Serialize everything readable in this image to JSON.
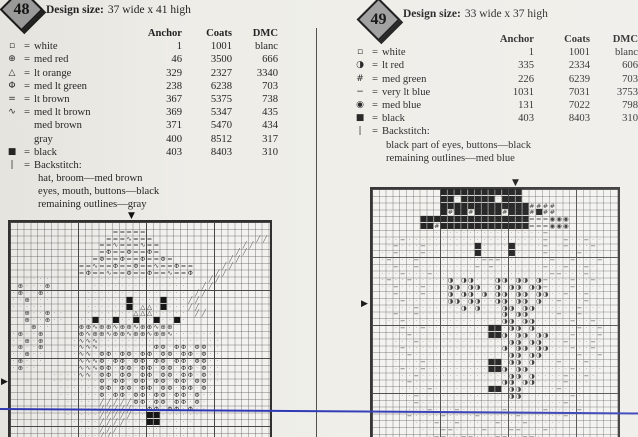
{
  "page": {
    "bg": "#eeede8",
    "blue_line_color": "#2b35b4"
  },
  "left": {
    "badge": "48",
    "design_size_label": "Design size:",
    "design_size": "37 wide x 41 high",
    "legend": {
      "headers": [
        "Anchor",
        "Coats",
        "DMC"
      ],
      "rows": [
        {
          "sym": "▫",
          "eq": "=",
          "name": "white",
          "anchor": "1",
          "coats": "1001",
          "dmc": "blanc"
        },
        {
          "sym": "⊕",
          "eq": "=",
          "name": "med red",
          "anchor": "46",
          "coats": "3500",
          "dmc": "666"
        },
        {
          "sym": "△",
          "eq": "=",
          "name": "lt orange",
          "anchor": "329",
          "coats": "2327",
          "dmc": "3340"
        },
        {
          "sym": "Φ",
          "eq": "=",
          "name": "med lt green",
          "anchor": "238",
          "coats": "6238",
          "dmc": "703"
        },
        {
          "sym": "=",
          "eq": "=",
          "name": "lt brown",
          "anchor": "367",
          "coats": "5375",
          "dmc": "738"
        },
        {
          "sym": "∿",
          "eq": "=",
          "name": "med lt brown",
          "anchor": "369",
          "coats": "5347",
          "dmc": "435"
        },
        {
          "sym": "",
          "eq": "",
          "name": "med brown",
          "anchor": "371",
          "coats": "5470",
          "dmc": "434"
        },
        {
          "sym": "",
          "eq": "",
          "name": "gray",
          "anchor": "400",
          "coats": "8512",
          "dmc": "317"
        },
        {
          "sym": "■",
          "eq": "=",
          "name": "black",
          "anchor": "403",
          "coats": "8403",
          "dmc": "310"
        }
      ],
      "backstitch": {
        "sym": "|",
        "eq": "=",
        "label": "Backstitch:",
        "lines": [
          "hat, broom—med brown",
          "eyes, mouth, buttons—black",
          "remaining outlines—gray"
        ]
      }
    },
    "chart": {
      "symbols": {
        "w": "·",
        "=": "=",
        "n": "∿",
        "r": "⊕",
        "g": "Φ",
        "t": "△",
        "x": "■",
        "/": "╱"
      },
      "palette": {
        "w": "#8d8d8d",
        "x": "#151515",
        "/": "#5a5a5a",
        "default": "#2e2e2e"
      },
      "map": [
        "......................................",
        "...............=====..................",
        "..............===n===...............//",
        ".............==n===n==............//..",
        ".............=g==g==g=...........//...",
        "............=g==g==g==g=........//....",
        "..........==n==g==g==n==g==....//.....",
        "..........=g==n==g==g==n==g...//......",
        "..wwww......wwwwwwwwwwwwww...//.......",
        ".rwwwr......wwwwwwwwwwwwww..//........",
        "wrwwrw.....wwwwwwwwwwwwwww.//.........",
        "wwrwww.....wwwwwwxwwwwxwww//..........",
        "wwwww......wwwwwwxwttwxwww//..........",
        "..rwwrww...wwwwwwwtttwwwww.//.........",
        "..rwwrww..wwxwwxwwxwwxwwxw............",
        "...rww....rrnrrnrrnrrnrr..............",
        "wrwwr.....rnrrnrrnrrnrrnwwwwwww.......",
        "wwrwr....wnnnwwwwwwwwwwwwwwwwww.......",
        "wrwwr....wnnnwwwwwwwwggwggwggww.......",
        "wwrww....wnnwggwggwggwggwggwgww.......",
        "wrwww.....nnngwggwggwggwggwggww.......",
        "wrww......nnnggwggwggwggwggwgww.......",
        "......wwwwnnwggwggwggwggwggwgww.......",
        "......wwwwwwwgwggwggwggwggwggww.......",
        ".......wwwwwwggwggwggwggwggwgw........",
        ".......wwwwwwgwggwggwggwggwgww........",
        "........wwwww/////ggwggwggwgw.........",
        "........wwwww/////wwggwggwgww.........",
        "........wwwww/////wwxxwwwwww..........",
        ".........wwww////wwwxxwwwww...........",
        ".........wwww///wwwwwwwwwww...........",
        "..........www//wwwwwwwwwww............"
      ]
    }
  },
  "right": {
    "badge": "49",
    "design_size_label": "Design size:",
    "design_size": "33 wide x 37 high",
    "legend": {
      "headers": [
        "Anchor",
        "Coats",
        "DMC"
      ],
      "rows": [
        {
          "sym": "▫",
          "eq": "=",
          "name": "white",
          "anchor": "1",
          "coats": "1001",
          "dmc": "blanc"
        },
        {
          "sym": "◑",
          "eq": "=",
          "name": "lt red",
          "anchor": "335",
          "coats": "2334",
          "dmc": "606"
        },
        {
          "sym": "#",
          "eq": "=",
          "name": "med green",
          "anchor": "226",
          "coats": "6239",
          "dmc": "703"
        },
        {
          "sym": "−",
          "eq": "=",
          "name": "very lt blue",
          "anchor": "1031",
          "coats": "7031",
          "dmc": "3753"
        },
        {
          "sym": "◉",
          "eq": "=",
          "name": "med blue",
          "anchor": "131",
          "coats": "7022",
          "dmc": "798"
        },
        {
          "sym": "■",
          "eq": "=",
          "name": "black",
          "anchor": "403",
          "coats": "8403",
          "dmc": "310"
        }
      ],
      "backstitch": {
        "sym": "|",
        "eq": "=",
        "label": "Backstitch:",
        "lines": [
          "black part of eyes, buttons—black",
          "remaining outlines—med blue"
        ]
      }
    },
    "chart": {
      "symbols": {
        "w": "·",
        "-": "−",
        "r": "◑",
        "#": "#",
        "b": "◉",
        "x": "■",
        "=": "="
      },
      "palette": {
        "w": "#8d8d8d",
        "x": "#151515",
        "default": "#2e2e2e"
      },
      "map": [
        "..........xxxxxxxxxxxx..............",
        "..........xxwxxxxxwxxx..............",
        "..........xxxxxxxxxxxxx####.........",
        "..........x#xx#xxxx#xxx#x##.........",
        ".......xxxxxxxxxxxxxxxx===bbb.......",
        ".......xx#xxxxxxxxxxxxx===bbb.......",
        ".........wwwwwwwwwwwwwwww-..........",
        "..ww-wwwwwwwwwwwwwwwwwwww-..-ww-ww..",
        "..w-www-wwwwwwwxwwwwxwwww-.w-www-w..",
        ".ww-www-wwwwwwwxwwwwxwwww-wwww-www..",
        ".w-www-wwwwwwwww---wwwwwww-ww-www-..",
        ".ww-ww-wwwwwwww-w-wwwwwww-ww-ww-w...",
        ".www-www-wwwwwwwwwwwwwwwww--www-ww..",
        ".w-ww-wwwwwrwrrwwwrrwrrwr-www-ww-w..",
        ".ww-www-wwwrrwrrwwrwrrwrr-www-wwww..",
        "..w-www-wwwrwrrwrwrrwrrwrrww-ww-ww..",
        "..ww-wwwwwwrrwrrwwrrwrrwrww-www-....",
        "..wwww-wwwwwwrwrwwwrrwrrwwwwww-www..",
        "..w-ww-wwwwwwwwwwwwrwrrwwww-ww-www..",
        "..ww-wwwwwwwwwwwwwwrrwrrwwwww-ww-w..",
        "...w-ww-wwwwwwwwwxxwrrwrwwwwww-ww-..",
        "...ww-wwwwwwwwwwwxxrwrrwrrwww-www-..",
        "...www-wwwwwwwwwwwwwrrwrrwww-www-w..",
        "...w-wwwwwwwwwwwwwwrwrrwrrwww-ww-w..",
        "...ww-wwwwwwwwwwwwwwrrwrrwwwww-ww-..",
        "...wwww-wwwwwwwwwxxwrrwrwww-www-ww..",
        "...w-ww-wwwwwwwwwxxrwrrwwwwww-wwww..",
        "....ww-wwwwwwwwwwwwwrrwrwwww-ww-w...",
        "....w-wwwwwwwwwwwwwrrwrrwwww-www....",
        "....wwww-wwwwwwwwxxwrrwwwww-www.....",
        "....ww-wwwwwwwwwwwwwrrwwwwwww-w.....",
        ".....w-wwwwwwwwwwwwwwwwwwwww-ww.....",
        ".....www-www-wwwwww-wwwww-wwww-.....",
        ".....-wwww-wwww-wwwww-wwwwww-w......",
        "......www-ww-wwwww-www-wwwww........",
        ".......www--wwww-www--www-w.........",
        "........w--ww--www--ww--w..........."
      ]
    }
  }
}
